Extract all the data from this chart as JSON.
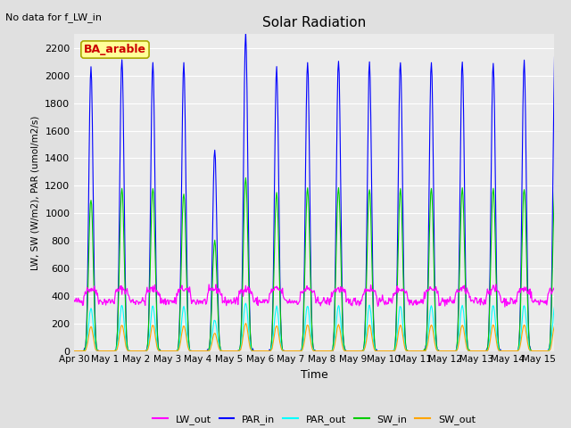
{
  "title": "Solar Radiation",
  "subtitle": "No data for f_LW_in",
  "xlabel": "Time",
  "ylabel": "LW, SW (W/m2), PAR (umol/m2/s)",
  "legend_label": "BA_arable",
  "ylim": [
    0,
    2300
  ],
  "yticks": [
    0,
    200,
    400,
    600,
    800,
    1000,
    1200,
    1400,
    1600,
    1800,
    2000,
    2200
  ],
  "n_days": 15.5,
  "series": {
    "PAR_in": {
      "color": "#0000FF",
      "label": "PAR_in"
    },
    "LW_out": {
      "color": "#FF00FF",
      "label": "LW_out"
    },
    "PAR_out": {
      "color": "#00FFFF",
      "label": "PAR_out"
    },
    "SW_in": {
      "color": "#00CC00",
      "label": "SW_in"
    },
    "SW_out": {
      "color": "#FFA500",
      "label": "SW_out"
    }
  },
  "background_color": "#e0e0e0",
  "plot_bg_color": "#ebebeb",
  "grid_color": "#ffffff",
  "figsize": [
    6.4,
    4.8
  ],
  "dpi": 100
}
